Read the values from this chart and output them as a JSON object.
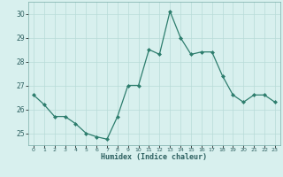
{
  "x": [
    0,
    1,
    2,
    3,
    4,
    5,
    6,
    7,
    8,
    9,
    10,
    11,
    12,
    13,
    14,
    15,
    16,
    17,
    18,
    19,
    20,
    21,
    22,
    23
  ],
  "y": [
    26.6,
    26.2,
    25.7,
    25.7,
    25.4,
    25.0,
    24.85,
    24.75,
    25.7,
    27.0,
    27.0,
    28.5,
    28.3,
    30.1,
    29.0,
    28.3,
    28.4,
    28.4,
    27.4,
    26.6,
    26.3,
    26.6,
    26.6,
    26.3
  ],
  "xlabel": "Humidex (Indice chaleur)",
  "ylim": [
    24.5,
    30.5
  ],
  "yticks": [
    25,
    26,
    27,
    28,
    29,
    30
  ],
  "xticks": [
    0,
    1,
    2,
    3,
    4,
    5,
    6,
    7,
    8,
    9,
    10,
    11,
    12,
    13,
    14,
    15,
    16,
    17,
    18,
    19,
    20,
    21,
    22,
    23
  ],
  "line_color": "#2d7d6d",
  "marker": "D",
  "marker_size": 2.0,
  "bg_color": "#d8f0ee",
  "grid_color": "#b8dbd8",
  "spine_color": "#7aada8"
}
